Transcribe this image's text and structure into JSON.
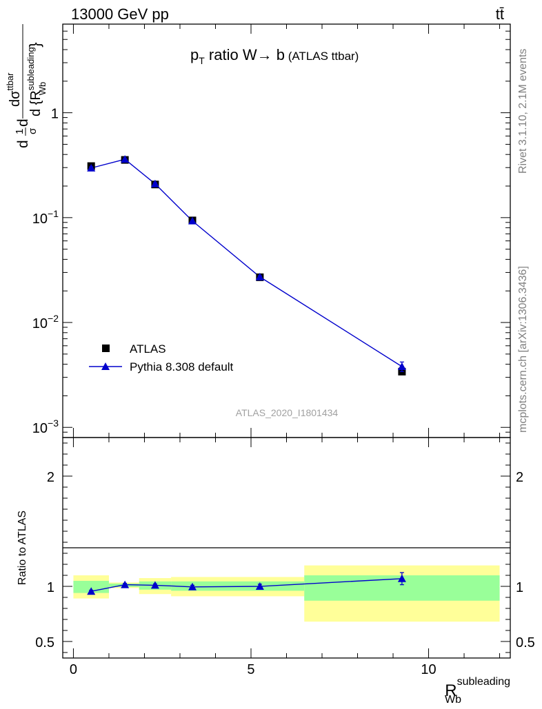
{
  "header": {
    "energy_label": "13000 GeV pp",
    "process_label": "tt̄"
  },
  "side_labels": {
    "rivet": "Rivet 3.1.10,  2.1M events",
    "mcplots": "mcplots.cern.ch [arXiv:1306.3436]"
  },
  "colors": {
    "mc": "#0000cc",
    "data": "#000000",
    "band_inner": "#99ff99",
    "band_outer": "#ffff99",
    "watermark": "#a0a0a0"
  },
  "chart_data": [
    {
      "type": "line",
      "panel": "main",
      "title_parts": {
        "p": "p",
        "T": "T",
        "rest": " ratio W",
        "arrow": "→",
        "b": " b",
        "paren": " (ATLAS ttbar)"
      },
      "ylabel_parts": {
        "num": "dσ",
        "num_sup": "ttbar",
        "den": "d {R",
        "den_sup": "subleading",
        "den_sub": "Wb",
        "brace": "}",
        "pre": "d",
        "one": "1",
        "sigma": "σ",
        "d2": "d"
      },
      "watermark": "ATLAS_2020_I1801434",
      "y_scale": "log",
      "ylim": [
        0.0008,
        7
      ],
      "xlim": [
        -0.3,
        12.3
      ],
      "y_ticks": [
        {
          "base": "10",
          "exp": "−3",
          "value": 0.001
        },
        {
          "base": "10",
          "exp": "−2",
          "value": 0.01
        },
        {
          "base": "10",
          "exp": "−1",
          "value": 0.1
        },
        {
          "base": "1",
          "exp": "",
          "value": 1
        }
      ],
      "legend": {
        "placement": "lower-left",
        "entries": [
          "ATLAS",
          "Pythia 8.308 default"
        ]
      },
      "series": [
        {
          "name": "ATLAS",
          "marker": "square",
          "x": [
            0.5,
            1.45,
            2.3,
            3.35,
            5.25,
            9.25
          ],
          "y": [
            0.31,
            0.355,
            0.207,
            0.094,
            0.027,
            0.0034
          ]
        },
        {
          "name": "Pythia 8.308 default",
          "marker": "triangle",
          "x": [
            0.5,
            1.45,
            2.3,
            3.35,
            5.25,
            9.25
          ],
          "y": [
            0.297,
            0.36,
            0.21,
            0.093,
            0.0272,
            0.0038
          ],
          "yerr": [
            0.008,
            0.008,
            0.005,
            0.002,
            0.0007,
            0.0004
          ]
        }
      ]
    },
    {
      "type": "line",
      "panel": "ratio",
      "ylabel": "Ratio to ATLAS",
      "xlabel_parts": {
        "R": "R",
        "sup": "subleading",
        "sub": "Wb"
      },
      "ylim": [
        0.35,
        2.35
      ],
      "xlim": [
        -0.3,
        12.3
      ],
      "y_ticks": [
        0.5,
        1,
        2
      ],
      "y_tick_labels": [
        "0.5",
        "1",
        "2"
      ],
      "x_ticks": [
        0,
        5,
        10
      ],
      "x_tick_labels": [
        "0",
        "5",
        "10"
      ],
      "bins": [
        {
          "lo": 0.0,
          "hi": 1.0,
          "inner": [
            0.94,
            1.05
          ],
          "outer": [
            0.89,
            1.1
          ]
        },
        {
          "lo": 1.0,
          "hi": 1.85,
          "inner": [
            0.995,
            1.025
          ],
          "outer": [
            0.985,
            1.035
          ]
        },
        {
          "lo": 1.85,
          "hi": 2.75,
          "inner": [
            0.97,
            1.045
          ],
          "outer": [
            0.93,
            1.075
          ]
        },
        {
          "lo": 2.75,
          "hi": 6.5,
          "inner": [
            0.96,
            1.045
          ],
          "outer": [
            0.91,
            1.085
          ]
        },
        {
          "lo": 6.5,
          "hi": 12.0,
          "inner": [
            0.87,
            1.1
          ],
          "outer": [
            0.68,
            1.19
          ]
        }
      ],
      "series": [
        {
          "name": "Pythia 8.308 default",
          "x": [
            0.5,
            1.45,
            2.3,
            3.35,
            5.25,
            9.25
          ],
          "y": [
            0.955,
            1.015,
            1.01,
            0.995,
            1.0,
            1.07
          ],
          "yerr": [
            0.01,
            0.012,
            0.012,
            0.015,
            0.02,
            0.055
          ]
        }
      ]
    }
  ]
}
